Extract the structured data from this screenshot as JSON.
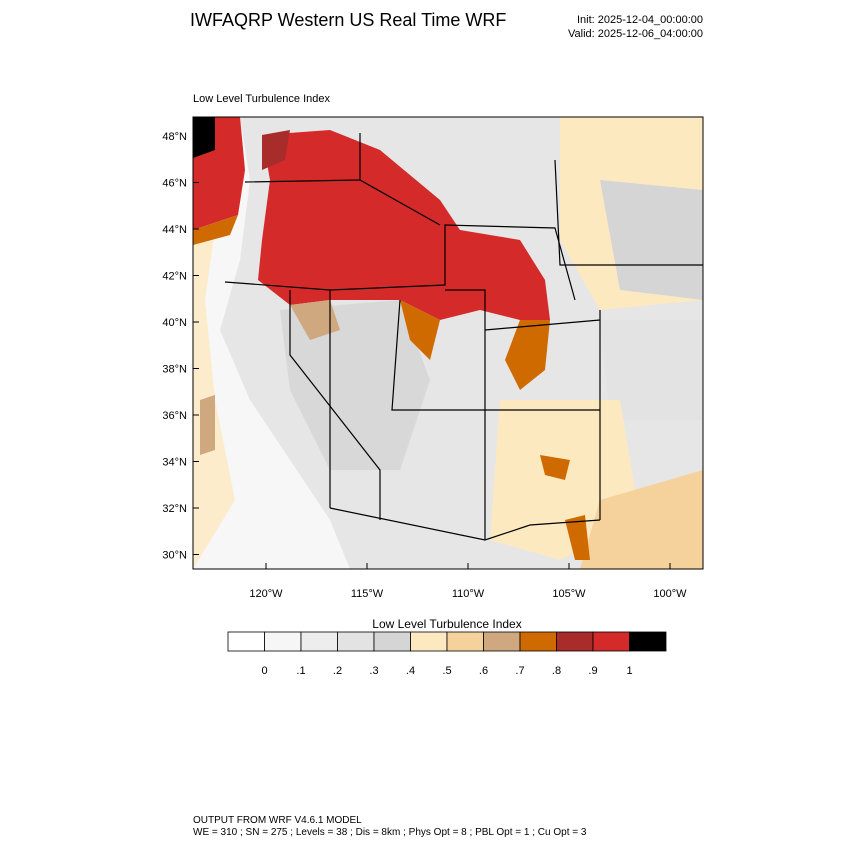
{
  "header": {
    "title": "IWFAQRP Western US Real Time WRF",
    "init": "Init: 2025-12-04_00:00:00",
    "valid": "Valid: 2025-12-06_04:00:00"
  },
  "map": {
    "field_label": "Low Level Turbulence Index",
    "lat_labels": [
      "48°N",
      "46°N",
      "44°N",
      "42°N",
      "40°N",
      "38°N",
      "36°N",
      "34°N",
      "32°N",
      "30°N"
    ],
    "lon_labels": [
      "120°W",
      "115°W",
      "110°W",
      "105°W",
      "100°W"
    ],
    "region": "Western United States"
  },
  "colorbar": {
    "title": "Low Level Turbulence Index",
    "colors": [
      "#ffffff",
      "#f6f6f6",
      "#ededed",
      "#e3e3e3",
      "#d5d5d5",
      "#fde9c0",
      "#f5d29c",
      "#cfa880",
      "#cf6a00",
      "#a82c2a",
      "#d42a2a",
      "#000000"
    ],
    "tick_labels": [
      "0",
      ".1",
      ".2",
      ".3",
      ".4",
      ".5",
      ".6",
      ".7",
      ".8",
      ".9",
      "1"
    ]
  },
  "footer": {
    "line1": "OUTPUT FROM WRF V4.6.1 MODEL",
    "line2": "WE = 310 ; SN = 275 ; Levels = 38 ; Dis = 8km ; Phys Opt = 8 ; PBL Opt = 1 ; Cu Opt = 3"
  }
}
